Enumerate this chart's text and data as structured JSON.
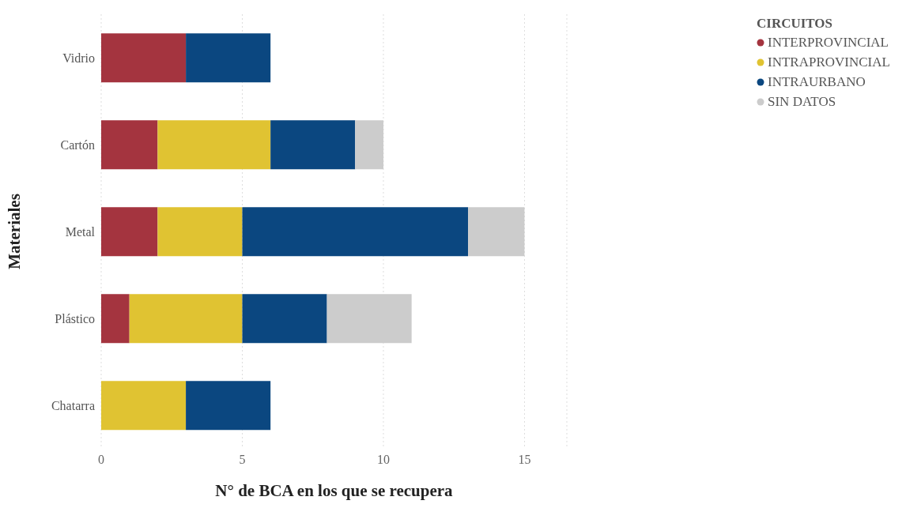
{
  "chart_data": {
    "type": "bar",
    "orientation": "horizontal",
    "stacked": true,
    "xlabel": "N° de BCA en los que se recupera",
    "ylabel": "Materiales",
    "legend_title": "CIRCUITOS",
    "legend": "top right",
    "grid": "x",
    "categories": [
      "Vidrio",
      "Cartón",
      "Metal",
      "Plástico",
      "Chatarra"
    ],
    "xlim": [
      0,
      16.5
    ],
    "xticks": [
      0,
      5,
      10,
      15
    ],
    "series": [
      {
        "name": "INTERPROVINCIAL",
        "color": "#a4343f",
        "values": [
          3,
          2,
          2,
          1,
          null
        ]
      },
      {
        "name": "INTRAPROVINCIAL",
        "color": "#e0c332",
        "values": [
          null,
          4,
          3,
          4,
          3
        ]
      },
      {
        "name": "INTRAURBANO",
        "color": "#0b4780",
        "values": [
          3,
          3,
          8,
          3,
          3
        ]
      },
      {
        "name": "SIN DATOS",
        "color": "#cccccc",
        "values": [
          null,
          1,
          2,
          3,
          null
        ]
      }
    ]
  }
}
